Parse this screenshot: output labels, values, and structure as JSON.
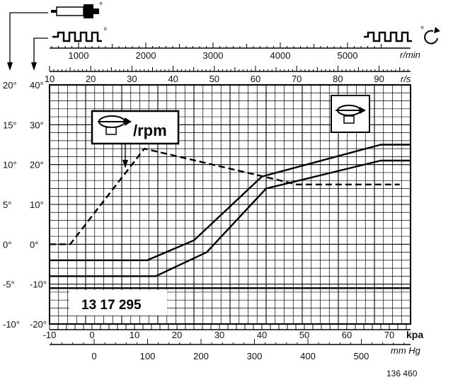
{
  "chart_data": {
    "type": "line",
    "title": "",
    "axes": {
      "rpm": {
        "label": "r/min",
        "ticks": [
          "1000",
          "2000",
          "3000",
          "4000",
          "5000"
        ]
      },
      "rps": {
        "label": "r/s",
        "ticks": [
          "10",
          "20",
          "30",
          "40",
          "50",
          "60",
          "70",
          "80",
          "90"
        ]
      },
      "left_deg": {
        "ticks": [
          "20°",
          "15°",
          "10°",
          "5°",
          "0°",
          "-5°",
          "-10°"
        ]
      },
      "left_deg2": {
        "ticks": [
          "40°",
          "30°",
          "20°",
          "10°",
          "0°",
          "-10°",
          "-20°"
        ]
      },
      "kpa": {
        "label": "kpa",
        "ticks": [
          "-10",
          "0",
          "10",
          "20",
          "30",
          "40",
          "50",
          "60",
          "70"
        ]
      },
      "mmhg": {
        "label": "mm Hg",
        "ticks": [
          "0",
          "100",
          "200",
          "300",
          "400",
          "500"
        ]
      }
    },
    "x_range_kpa": [
      -10,
      75
    ],
    "y_range_deg": [
      -20,
      40
    ],
    "grid": true,
    "series": [
      {
        "style": "dashed",
        "x_axis": "r/s",
        "points": [
          [
            10,
            0
          ],
          [
            15,
            0
          ],
          [
            33,
            24
          ],
          [
            62,
            17
          ],
          [
            70,
            15
          ],
          [
            95,
            15
          ]
        ]
      },
      {
        "style": "solid",
        "x_axis": "kpa",
        "points": [
          [
            -10,
            -4
          ],
          [
            13,
            -4
          ],
          [
            24,
            1
          ],
          [
            40,
            17
          ],
          [
            68,
            25
          ],
          [
            75,
            25
          ]
        ]
      },
      {
        "style": "solid",
        "x_axis": "kpa",
        "points": [
          [
            -10,
            -8
          ],
          [
            15,
            -8
          ],
          [
            27,
            -2
          ],
          [
            41,
            14
          ],
          [
            68,
            21
          ],
          [
            75,
            21
          ]
        ]
      },
      {
        "style": "solid",
        "x_axis": "kpa",
        "points": [
          [
            -10,
            -11
          ],
          [
            75,
            -11
          ]
        ]
      }
    ]
  },
  "labels": {
    "rpm_label": "/rpm",
    "part_number": "13 17 295",
    "figure_ref": "136 460",
    "deg_mark": "°"
  }
}
